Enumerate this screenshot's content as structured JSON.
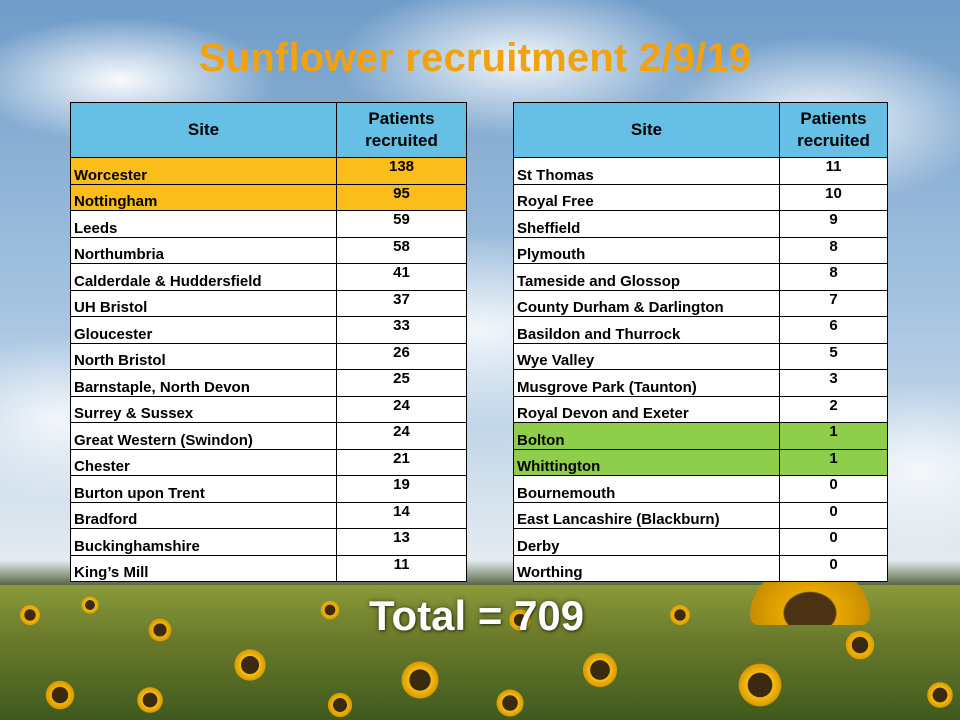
{
  "title": "Sunflower recruitment 2/9/19",
  "colors": {
    "title": "#f2a10f",
    "header_fill": "#66bfe4",
    "highlight_top": "#fbbd1a",
    "highlight_low": "#8fce4b"
  },
  "left_table": {
    "headers": [
      "Site",
      "Patients recruited"
    ],
    "rows": [
      {
        "site": "Worcester",
        "patients": "138",
        "highlight": "orange"
      },
      {
        "site": "Nottingham",
        "patients": "95",
        "highlight": "orange"
      },
      {
        "site": "Leeds",
        "patients": "59"
      },
      {
        "site": "Northumbria",
        "patients": "58"
      },
      {
        "site": "Calderdale & Huddersfield",
        "patients": "41"
      },
      {
        "site": "UH Bristol",
        "patients": "37"
      },
      {
        "site": "Gloucester",
        "patients": "33"
      },
      {
        "site": "North Bristol",
        "patients": "26"
      },
      {
        "site": "Barnstaple, North Devon",
        "patients": "25"
      },
      {
        "site": "Surrey & Sussex",
        "patients": "24"
      },
      {
        "site": "Great Western (Swindon)",
        "patients": "24"
      },
      {
        "site": "Chester",
        "patients": "21"
      },
      {
        "site": "Burton upon Trent",
        "patients": "19"
      },
      {
        "site": "Bradford",
        "patients": "14"
      },
      {
        "site": "Buckinghamshire",
        "patients": "13"
      },
      {
        "site": "King’s Mill",
        "patients": "11"
      }
    ]
  },
  "right_table": {
    "headers": [
      "Site",
      "Patients recruited"
    ],
    "rows": [
      {
        "site": "St Thomas",
        "patients": "11"
      },
      {
        "site": "Royal Free",
        "patients": "10"
      },
      {
        "site": "Sheffield",
        "patients": "9"
      },
      {
        "site": "Plymouth",
        "patients": "8"
      },
      {
        "site": "Tameside and Glossop",
        "patients": "8"
      },
      {
        "site": "County Durham & Darlington",
        "patients": "7"
      },
      {
        "site": "Basildon and Thurrock",
        "patients": "6"
      },
      {
        "site": "Wye Valley",
        "patients": "5"
      },
      {
        "site": "Musgrove Park (Taunton)",
        "patients": "3"
      },
      {
        "site": "Royal Devon and Exeter",
        "patients": "2"
      },
      {
        "site": "Bolton",
        "patients": "1",
        "highlight": "green"
      },
      {
        "site": "Whittington",
        "patients": "1",
        "highlight": "green"
      },
      {
        "site": "Bournemouth",
        "patients": "0"
      },
      {
        "site": "East Lancashire (Blackburn)",
        "patients": "0"
      },
      {
        "site": "Derby",
        "patients": "0"
      },
      {
        "site": "Worthing",
        "patients": "0"
      }
    ]
  },
  "total": "Total = 709"
}
